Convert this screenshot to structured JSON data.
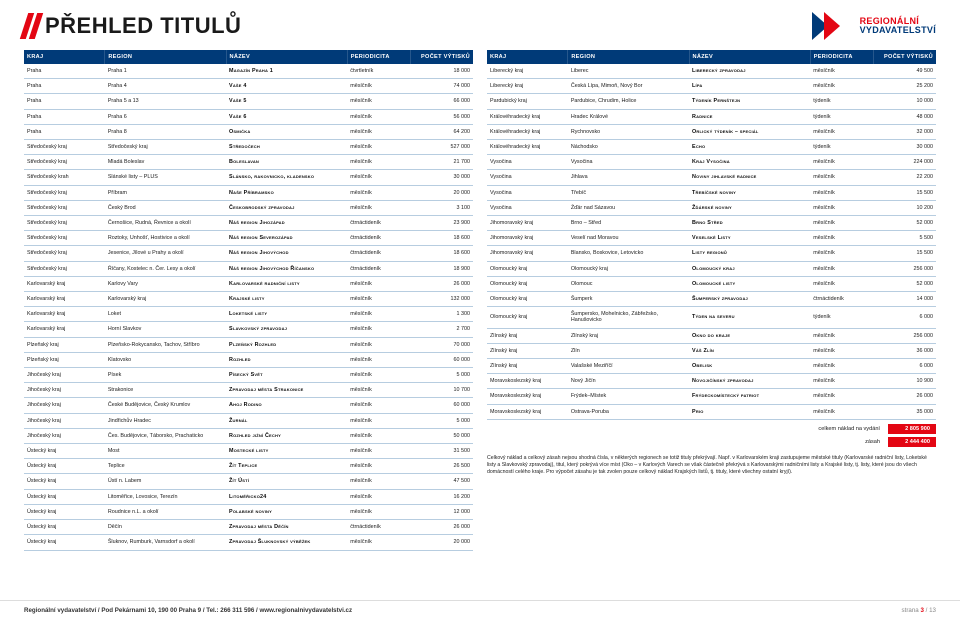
{
  "header": {
    "title": "PŘEHLED TITULŮ",
    "logo_line1": "REGIONÁLNÍ",
    "logo_line2": "VYDAVATELSTVÍ"
  },
  "columns": [
    "KRAJ",
    "REGION",
    "NÁZEV",
    "PERIODICITA",
    "POČET VÝTISKŮ"
  ],
  "left_rows": [
    [
      "Praha",
      "Praha 1",
      "Magazín Praha 1",
      "čtvrtletník",
      "18 000"
    ],
    [
      "Praha",
      "Praha 4",
      "Vaše 4",
      "měsíčník",
      "74 000"
    ],
    [
      "Praha",
      "Praha 5 a 13",
      "Vaše 5",
      "měsíčník",
      "66 000"
    ],
    [
      "Praha",
      "Praha 6",
      "Vaše 6",
      "měsíčník",
      "56 000"
    ],
    [
      "Praha",
      "Praha 8",
      "Osmička",
      "měsíčník",
      "64 200"
    ],
    [
      "Středočeský kraj",
      "Středočeský kraj",
      "Středočech",
      "měsíčník",
      "527 000"
    ],
    [
      "Středočeský kraj",
      "Mladá Boleslav",
      "Boleslavan",
      "měsíčník",
      "21 700"
    ],
    [
      "Středočeský krah",
      "Slánské listy – PLUS",
      "Slánsko, rakovnicko, kladensko",
      "měsíčník",
      "30 000"
    ],
    [
      "Středočeský kraj",
      "Příbram",
      "Naše Příbramsko",
      "měsíčník",
      "20 000"
    ],
    [
      "Středočeský kraj",
      "Český Brod",
      "Českobrodský zpravodaj",
      "měsíčník",
      "3 100"
    ],
    [
      "Středočeský kraj",
      "Černošice, Rudná, Řevnice a okolí",
      "Náš region Jihozápad",
      "čtrnáctideník",
      "23 900"
    ],
    [
      "Středočeský kraj",
      "Roztoky, Unhošť, Hostivice a okolí",
      "Náš region Severozápad",
      "čtrnáctideník",
      "18 600"
    ],
    [
      "Středočeský kraj",
      "Jesenice, Jílové u Prahy a okolí",
      "Náš region Jihovýchod",
      "čtrnáctideník",
      "18 600"
    ],
    [
      "Středočeský kraj",
      "Říčany, Kostelec n. Čer. Lesy a okolí",
      "Náš region Jihovýchod Říčansko",
      "čtrnáctideník",
      "18 900"
    ],
    [
      "Karlovarský kraj",
      "Karlovy Vary",
      "Karlovarské radniční listy",
      "měsíčník",
      "26 000"
    ],
    [
      "Karlovarský kraj",
      "Karlovarský kraj",
      "Krajské listy",
      "měsíčník",
      "132 000"
    ],
    [
      "Karlovarský kraj",
      "Loket",
      "Loketské listy",
      "měsíčník",
      "1 300"
    ],
    [
      "Karlovarský kraj",
      "Horní Slavkov",
      "Slavkovský zpravodaj",
      "měsíčník",
      "2 700"
    ],
    [
      "Plzeňský kraj",
      "Plzeňsko-Rokycansko, Tachov, Stříbro",
      "Plzeňský Rozhled",
      "měsíčník",
      "70 000"
    ],
    [
      "Plzeňský kraj",
      "Klatovsko",
      "Rozhled",
      "měsíčník",
      "60 000"
    ],
    [
      "Jihočeský kraj",
      "Písek",
      "Písecký Svět",
      "měsíčník",
      "5 000"
    ],
    [
      "Jihočeský kraj",
      "Strakonice",
      "Zpravodaj města Strakonice",
      "měsíčník",
      "10 700"
    ],
    [
      "Jihočeský kraj",
      "České Budějovice, Český Krumlov",
      "Ahoj Rodino",
      "měsíčník",
      "60 000"
    ],
    [
      "Jihočeský kraj",
      "Jindřichův Hradec",
      "Žurnál",
      "měsíčník",
      "5 000"
    ],
    [
      "Jihočeský kraj",
      "Čes. Budějovice, Táborsko, Prachaticko",
      "Rozhled jižní Čechy",
      "měsíčník",
      "50 000"
    ],
    [
      "Ústecký kraj",
      "Most",
      "Mostecké listy",
      "měsíčník",
      "31 500"
    ],
    [
      "Ústecký kraj",
      "Teplice",
      "Žít Teplice",
      "měsíčník",
      "26 500"
    ],
    [
      "Ústecký kraj",
      "Ústí n. Labem",
      "Žít Ústí",
      "měsíčník",
      "47 500"
    ],
    [
      "Ústecký kraj",
      "Litoměřice, Lovosice, Terezín",
      "Litoměřicko24",
      "měsíčník",
      "16 200"
    ],
    [
      "Ústecký kraj",
      "Roudnice n.L. a okolí",
      "Polabské noviny",
      "měsíčník",
      "12 000"
    ],
    [
      "Ústecký kraj",
      "Děčín",
      "Zpravodaj města Děčín",
      "čtrnáctideník",
      "26 000"
    ],
    [
      "Ústecký kraj",
      "Šluknov, Rumburk, Varnsdorf a okolí",
      "Zpravodaj Šluknovský výběžek",
      "měsíčník",
      "20 000"
    ]
  ],
  "right_rows": [
    [
      "Liberecký kraj",
      "Liberec",
      "Liberecký zpravodaj",
      "měsíčník",
      "49 500"
    ],
    [
      "Liberecký kraj",
      "Česká Lípa, Mimoň, Nový Bor",
      "Lípa",
      "měsíčník",
      "25 200"
    ],
    [
      "Pardubický kraj",
      "Pardubice, Chrudim, Holice",
      "Týdeník Pernštejn",
      "týdeník",
      "10 000"
    ],
    [
      "Královéhradecký kraj",
      "Hradec Králové",
      "Radnice",
      "týdeník",
      "48 000"
    ],
    [
      "Královéhradecký kraj",
      "Rychnovsko",
      "Orlický týdeník – speciál",
      "měsíčník",
      "32 000"
    ],
    [
      "Královéhradecký kraj",
      "Náchodsko",
      "Echo",
      "týdeník",
      "30 000"
    ],
    [
      "Vysočina",
      "Vysočina",
      "Kraj Vysočina",
      "měsíčník",
      "224 000"
    ],
    [
      "Vysočina",
      "Jihlava",
      "Noviny jihlavské radnice",
      "měsíčník",
      "22 200"
    ],
    [
      "Vysočina",
      "Třebíč",
      "Třebíčské noviny",
      "měsíčník",
      "15 500"
    ],
    [
      "Vysočina",
      "Žďár nad Sázavou",
      "Žďárské noviny",
      "měsíčník",
      "10 200"
    ],
    [
      "Jihomoravský kraj",
      "Brno – Střed",
      "Brno Střed",
      "měsíčník",
      "52 000"
    ],
    [
      "Jihomoravský kraj",
      "Veselí nad Moravou",
      "Veselské Listy",
      "měsíčník",
      "5 500"
    ],
    [
      "Jihomoravský kraj",
      "Blansko, Boskovice, Letovicko",
      "Listy regionů",
      "měsíčník",
      "15 500"
    ],
    [
      "Olomoucký kraj",
      "Olomoucký kraj",
      "Olomoucký kraj",
      "měsíčník",
      "256 000"
    ],
    [
      "Olomoucký kraj",
      "Olomouc",
      "Olomoucké listy",
      "měsíčník",
      "52 000"
    ],
    [
      "Olomoucký kraj",
      "Šumperk",
      "Šumperský zpravodaj",
      "čtrnáctideník",
      "14 000"
    ],
    [
      "Olomoucký kraj",
      "Šumpersko, Mohelnicko, Zábřežsko, Hanušovicko",
      "Týden na severu",
      "týdeník",
      "6 000"
    ],
    [
      "Zlínský kraj",
      "Zlínský kraj",
      "Okno do kraje",
      "měsíčník",
      "256 000"
    ],
    [
      "Zlínský kraj",
      "Zlín",
      "Váš Zlín",
      "měsíčník",
      "36 000"
    ],
    [
      "Zlínský kraj",
      "Valašské Meziříčí",
      "Obelisk",
      "měsíčník",
      "6 000"
    ],
    [
      "Moravskoslezský kraj",
      "Nový Jičín",
      "Novojičínský zpravodaj",
      "měsíčník",
      "10 900"
    ],
    [
      "Moravskoslezský kraj",
      "Frýdek–Místek",
      "Frýdeckomístecký patriot",
      "měsíčník",
      "26 000"
    ],
    [
      "Moravskoslezský kraj",
      "Ostrava-Poruba",
      "Prio",
      "měsíčník",
      "35 000"
    ]
  ],
  "totals": {
    "label1": "celkem náklad na vydání",
    "value1": "2 805 900",
    "label2": "zásah",
    "value2": "2 444 400"
  },
  "footnote": "Celkový náklad a celkový zásah nejsou shodná čísla, v některých regionech se totiž tituly překrývají. Např. v Karlovarském kraji zastupujeme městské tituly (Karlovarské radniční listy, Loketské listy a Slavkovský zpravodaj), titul, který pokrývá více míst (Oko – v Karlových Varech se však částečně překrývá s Karlovarskými radničními listy a Krajské listy, tj. listy, které jsou do všech domácností celého kraje. Pro výpočet zásahu je tak zvolen pouze celkový náklad Krajských listů, tj. tituly, které všechny ostatní kryjí).",
  "footer": {
    "left": "Regionální vydavatelství / Pod Pekárnami 10, 190 00 Praha 9 / Tel.: 266 311 596 / www.regionalnivydavatelstvi.cz",
    "right_label": "strana",
    "right_num": "3",
    "right_total": "/ 13"
  },
  "colors": {
    "brand_blue": "#003a78",
    "brand_red": "#e30613",
    "row_border": "#b7cde0"
  }
}
